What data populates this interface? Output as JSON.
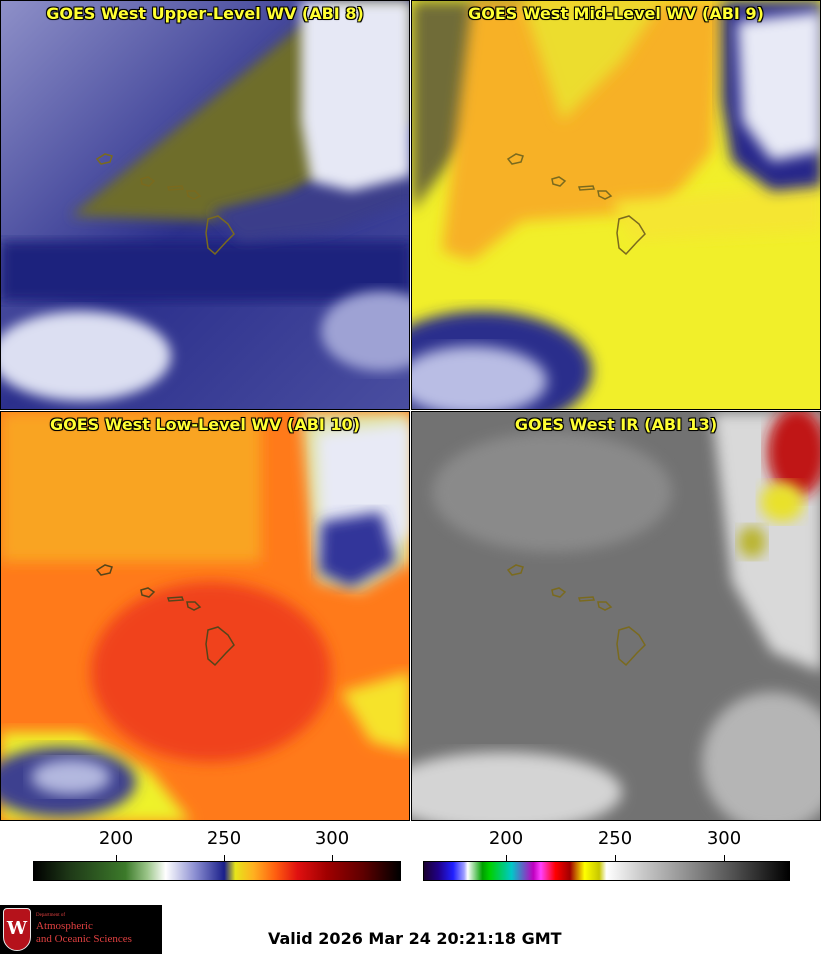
{
  "panels": [
    {
      "title": "GOES West Upper-Level WV (ABI 8)"
    },
    {
      "title": "GOES West Mid-Level WV (ABI 9)"
    },
    {
      "title": "GOES West Low-Level WV (ABI 10)"
    },
    {
      "title": "GOES West IR (ABI 13)"
    }
  ],
  "colorbars": {
    "wv": {
      "ticks": [
        "200",
        "250",
        "300"
      ]
    },
    "ir": {
      "ticks": [
        "200",
        "250",
        "300"
      ]
    }
  },
  "logo": {
    "dept": "Department of",
    "line1": "Atmospheric",
    "line2": "and Oceanic Sciences",
    "shield": "W"
  },
  "valid_text": "Valid 2026 Mar 24 20:21:18 GMT",
  "colors": {
    "title_yellow": "#ffff33",
    "coastline": "#7a6a1e"
  }
}
